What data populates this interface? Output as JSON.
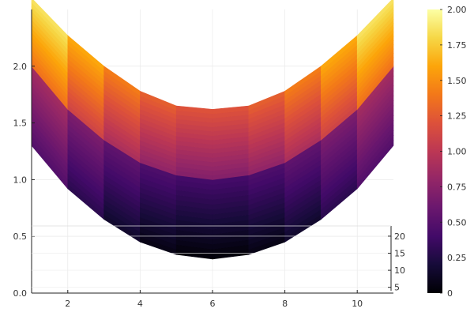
{
  "chart_data": {
    "type": "heatmap",
    "title": "",
    "xlabel": "",
    "ylabel": "",
    "x_ticks": [
      2,
      4,
      6,
      8,
      10
    ],
    "y_ticks": [
      0.0,
      0.5,
      1.0,
      1.5,
      2.0
    ],
    "y_tick_labels": [
      "0.0",
      "0.5",
      "1.0",
      "1.5",
      "2.0"
    ],
    "xlim": [
      1,
      11
    ],
    "ylim": [
      0.0,
      2.5
    ],
    "grid": true,
    "surfaces": [
      {
        "x": [
          1,
          2,
          3,
          4,
          5,
          6,
          7,
          8,
          9,
          10,
          11
        ],
        "lower": [
          1.3,
          0.92,
          0.65,
          0.45,
          0.34,
          0.3,
          0.34,
          0.45,
          0.65,
          0.92,
          1.3
        ],
        "upper": [
          2.0,
          1.62,
          1.35,
          1.15,
          1.04,
          1.0,
          1.04,
          1.15,
          1.35,
          1.62,
          2.0
        ],
        "value_min": 0.0,
        "value_max": 1.0
      },
      {
        "x": [
          1,
          2,
          3,
          4,
          5,
          6,
          7,
          8,
          9,
          10,
          11
        ],
        "lower": [
          2.0,
          1.62,
          1.35,
          1.15,
          1.04,
          1.0,
          1.04,
          1.15,
          1.35,
          1.62,
          2.0
        ],
        "upper": [
          2.6,
          2.27,
          2.0,
          1.78,
          1.65,
          1.62,
          1.65,
          1.78,
          2.0,
          2.27,
          2.6
        ],
        "value_min": 0.7,
        "value_max": 2.0
      }
    ],
    "inset_axis": {
      "ticks": [
        5,
        10,
        15,
        20
      ],
      "range": [
        4,
        23
      ]
    },
    "colorbar": {
      "colormap": "inferno",
      "range": [
        0.0,
        2.0
      ],
      "ticks": [
        0.0,
        0.25,
        0.5,
        0.75,
        1.0,
        1.25,
        1.5,
        1.75,
        2.0
      ],
      "tick_labels": [
        "0",
        "0.25",
        "0.50",
        "0.75",
        "1.00",
        "1.25",
        "1.50",
        "1.75",
        "2.00"
      ]
    }
  }
}
